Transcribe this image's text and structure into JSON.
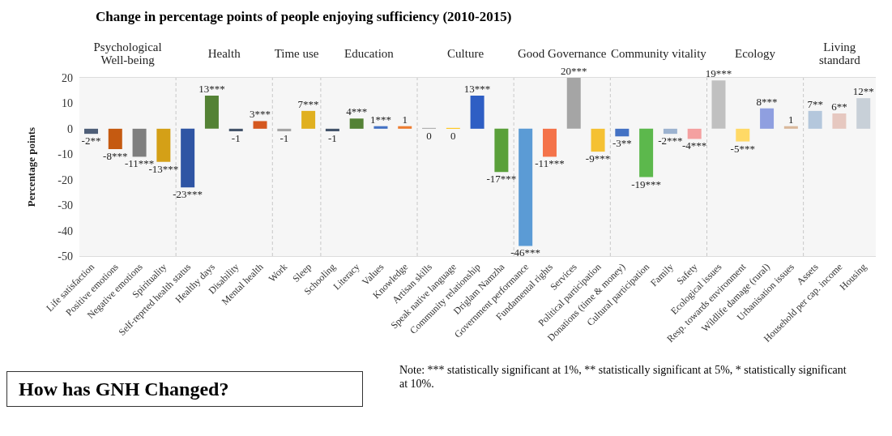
{
  "chart_data": {
    "type": "bar",
    "title": "Change in percentage points of people enjoying sufficiency (2010-2015)",
    "ylabel": "Percentage points",
    "categories": [
      "Life satisfaction",
      "Positive emotions",
      "Negative emotions",
      "Spirituality",
      "Self-reprted health status",
      "Healthy days",
      "Disability",
      "Mental health",
      "Work",
      "Sleep",
      "Schooling",
      "Literacy",
      "Values",
      "Knowledge",
      "Artisan skills",
      "Speak native language",
      "Community relationship",
      "Driglam Namzha",
      "Government performance",
      "Fundamental rights",
      "Services",
      "Political participation",
      "Donations (time & money)",
      "Cultural participation",
      "Family",
      "Safety",
      "Ecological issues",
      "Resp. towards environment",
      "Wildlife damage (rural)",
      "Urbanisation issues",
      "Assets",
      "Household per cap. income",
      "Housing"
    ],
    "values": [
      -2,
      -8,
      -11,
      -13,
      -23,
      13,
      -1,
      3,
      -1,
      7,
      -1,
      4,
      1,
      1,
      0,
      0,
      13,
      -17,
      -46,
      -11,
      20,
      -9,
      -3,
      -19,
      -2,
      -4,
      19,
      -5,
      8,
      1,
      7,
      6,
      12
    ],
    "value_labels": [
      "-2**",
      "-8***",
      "-11***",
      "-13***",
      "-23***",
      "13***",
      "-1",
      "3***",
      "-1",
      "7***",
      "-1",
      "4***",
      "1***",
      "1",
      "0",
      "0",
      "13***",
      "-17***",
      "-46***",
      "-11***",
      "20***",
      "-9***",
      "-3**",
      "-19***",
      "-2***",
      "-4***",
      "19***",
      "-5***",
      "8***",
      "1",
      "7**",
      "6**",
      "12**"
    ],
    "colors": [
      "#4f5f78",
      "#c55a11",
      "#7f7f7f",
      "#d4a017",
      "#2f55a4",
      "#548235",
      "#44546a",
      "#d5581f",
      "#a5a5a5",
      "#e0b020",
      "#44546a",
      "#548235",
      "#4472c4",
      "#ed7d31",
      "#a5a5a5",
      "#ffc000",
      "#2e5ec4",
      "#5aa03a",
      "#5b9bd5",
      "#f4734a",
      "#a5a5a5",
      "#f5c133",
      "#4472c4",
      "#5cb84c",
      "#9db3d0",
      "#f4a0a0",
      "#c0c0c0",
      "#ffd966",
      "#8f9fe0",
      "#d9b89b",
      "#b4c7dc",
      "#e6c8c0",
      "#c8d0d8"
    ],
    "ylim": [
      -50,
      20
    ],
    "yticks": [
      -50,
      -40,
      -30,
      -20,
      -10,
      0,
      10,
      20
    ],
    "grid": "y",
    "bands": [
      {
        "axis": "x",
        "from": "Life satisfaction",
        "to": "Spirituality",
        "label": "Psychological Well-being",
        "color": "#f6f6f6"
      },
      {
        "axis": "x",
        "from": "Self-reprted health status",
        "to": "Mental health",
        "label": "Health",
        "color": "#f6f6f6"
      },
      {
        "axis": "x",
        "from": "Work",
        "to": "Sleep",
        "label": "Time use",
        "color": "#f6f6f6"
      },
      {
        "axis": "x",
        "from": "Schooling",
        "to": "Knowledge",
        "label": "Education",
        "color": "#f6f6f6"
      },
      {
        "axis": "x",
        "from": "Artisan skills",
        "to": "Driglam Namzha",
        "label": "Culture",
        "color": "#f6f6f6"
      },
      {
        "axis": "x",
        "from": "Government performance",
        "to": "Political participation",
        "label": "Good Governance",
        "color": "#f6f6f6"
      },
      {
        "axis": "x",
        "from": "Donations (time & money)",
        "to": "Safety",
        "label": "Community vitality",
        "color": "#f6f6f6"
      },
      {
        "axis": "x",
        "from": "Ecological issues",
        "to": "Urbanisation issues",
        "label": "Ecology",
        "color": "#f6f6f6"
      },
      {
        "axis": "x",
        "from": "Assets",
        "to": "Housing",
        "label": "Living standard",
        "color": "#f6f6f6"
      }
    ],
    "annotations": [
      "How has GNH Changed?",
      "Note:   *** statistically significant at 1%, ** statistically significant at 5%, * statistically significant at 10%."
    ]
  }
}
